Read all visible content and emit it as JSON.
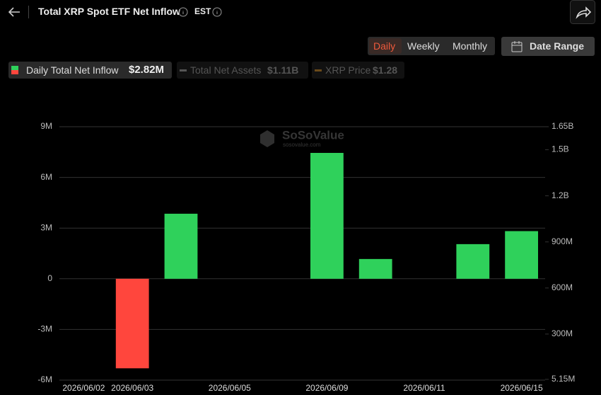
{
  "header": {
    "title": "Total XRP Spot ETF Net Inflow",
    "timezone": "EST"
  },
  "toolbar": {
    "periods": [
      "Daily",
      "Weekly",
      "Monthly"
    ],
    "date_range": "Date Range"
  },
  "legend": [
    {
      "name": "Daily Total Net Inflow",
      "value_label": "$2.82M"
    },
    {
      "name": "Total Net Assets",
      "value_label": "$1.11B"
    },
    {
      "name": "XRP Price",
      "value_label": "$1.28"
    }
  ],
  "watermark": {
    "brand": "SoSoValue",
    "site": "sosovalue.com"
  },
  "chart_data": {
    "type": "bar",
    "categories": [
      "2026/06/02",
      "2026/06/03",
      null,
      "2026/06/05",
      null,
      "2026/06/09",
      null,
      "2026/06/11",
      null,
      "2026/06/15"
    ],
    "series": [
      {
        "name": "Daily Total Net Inflow",
        "color": "#2fd15b",
        "negative_color": "#ff463d",
        "values": [
          0,
          -5300000,
          3850000,
          0,
          0,
          7450000,
          1170000,
          0,
          2050000,
          2820000
        ]
      }
    ],
    "ylim": [
      -6000000,
      9000000
    ],
    "yticks": [
      {
        "value": -6000000,
        "label": "-6M"
      },
      {
        "value": -3000000,
        "label": "-3M"
      },
      0,
      {
        "value": 3000000,
        "label": "3M"
      },
      {
        "value": 6000000,
        "label": "6M"
      },
      {
        "value": 9000000,
        "label": "9M"
      }
    ],
    "y2lim": [
      0,
      1650000000
    ],
    "y2ticks": [
      {
        "value": 5150000,
        "label": "5.15M"
      },
      {
        "value": 300000000,
        "label": "300M"
      },
      {
        "value": 600000000,
        "label": "600M"
      },
      {
        "value": 900000000,
        "label": "900M"
      },
      {
        "value": 1200000000,
        "label": "1.2B"
      },
      {
        "value": 1500000000,
        "label": "1.5B"
      },
      {
        "value": 1650000000,
        "label": "1.65B"
      }
    ],
    "grid": true
  }
}
